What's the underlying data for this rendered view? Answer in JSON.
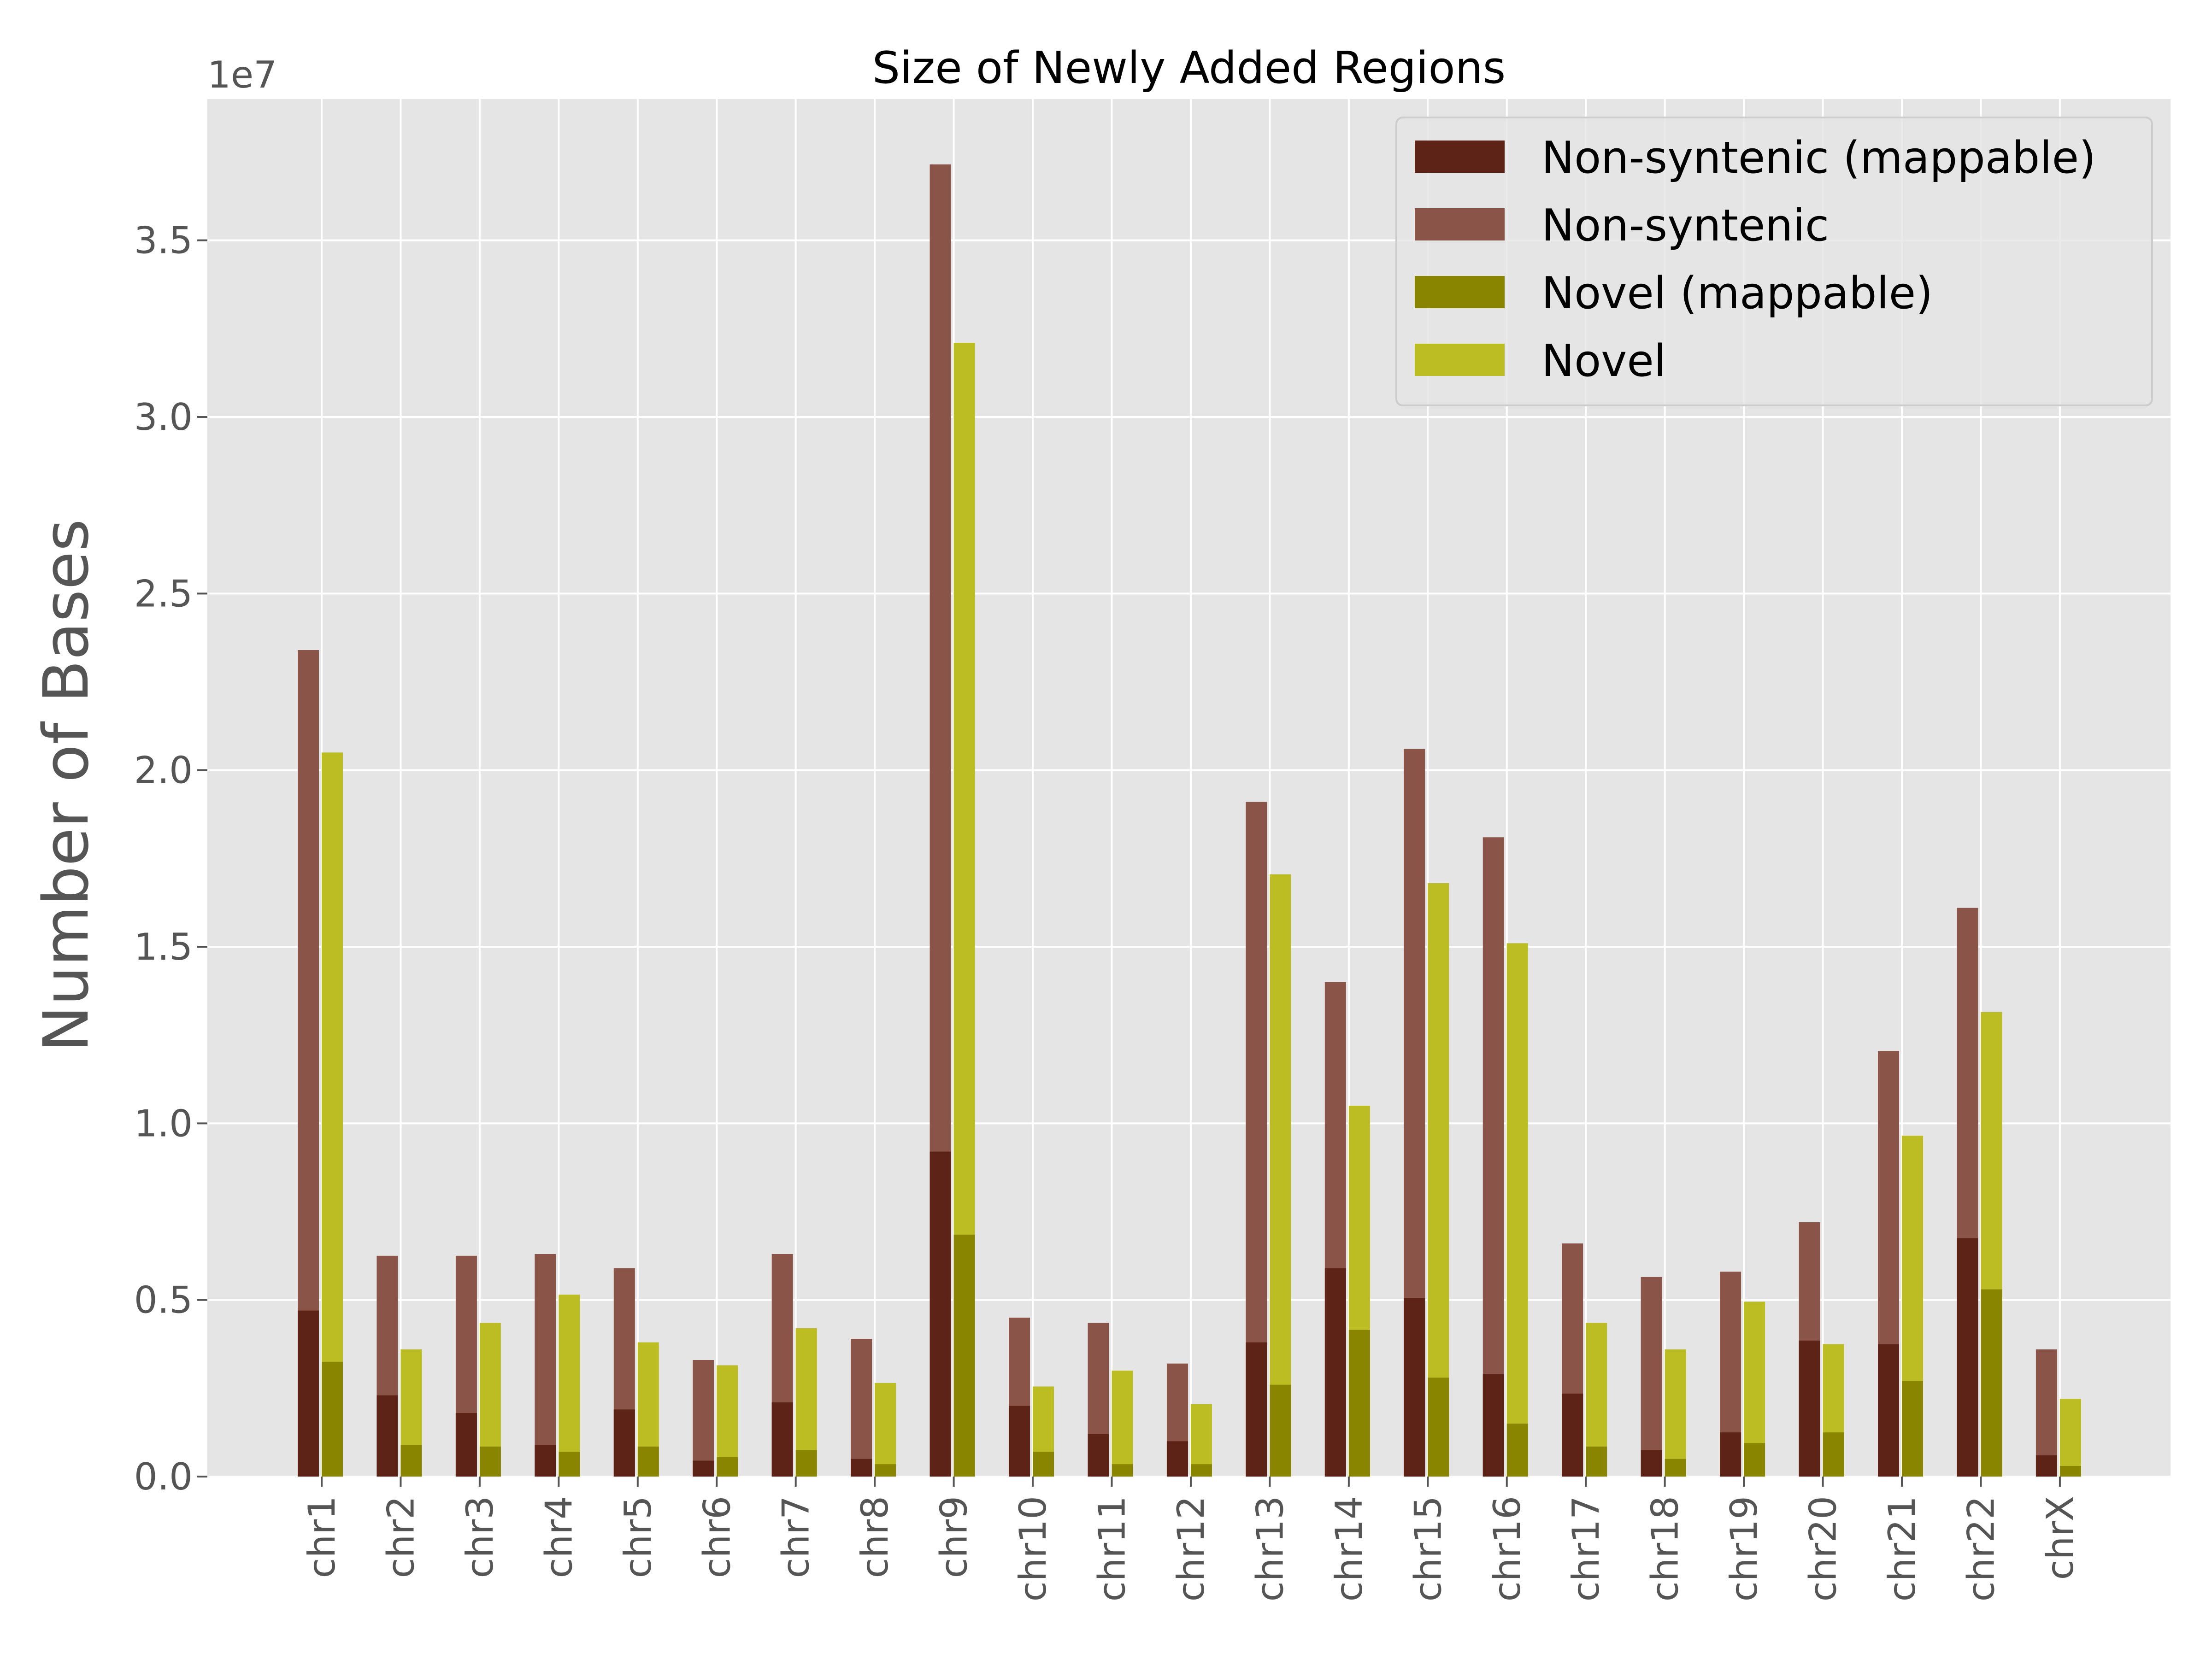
{
  "chart_data": {
    "type": "bar",
    "title": "Size of Newly Added Regions",
    "xlabel": "",
    "ylabel": "Number of Bases",
    "y_offset_label": "1e7",
    "ylim": [
      0,
      3.9
    ],
    "yticks": [
      "0.0",
      "0.5",
      "1.0",
      "1.5",
      "2.0",
      "2.5",
      "3.0",
      "3.5"
    ],
    "grid": true,
    "legend_position": "top-right",
    "categories": [
      "chr1",
      "chr2",
      "chr3",
      "chr4",
      "chr5",
      "chr6",
      "chr7",
      "chr8",
      "chr9",
      "chr10",
      "chr11",
      "chr12",
      "chr13",
      "chr14",
      "chr15",
      "chr16",
      "chr17",
      "chr18",
      "chr19",
      "chr20",
      "chr21",
      "chr22",
      "chrX"
    ],
    "series": [
      {
        "name": "Non-syntenic (mappable)",
        "color": "#5c2316",
        "group": "Non-syntenic",
        "values": [
          0.47,
          0.23,
          0.18,
          0.09,
          0.19,
          0.045,
          0.21,
          0.05,
          0.92,
          0.2,
          0.12,
          0.1,
          0.38,
          0.59,
          0.505,
          0.29,
          0.235,
          0.075,
          0.125,
          0.385,
          0.375,
          0.675,
          0.06
        ]
      },
      {
        "name": "Non-syntenic",
        "color": "#8a5449",
        "group": "Non-syntenic",
        "values": [
          2.34,
          0.625,
          0.625,
          0.63,
          0.59,
          0.33,
          0.63,
          0.39,
          3.715,
          0.45,
          0.435,
          0.32,
          1.91,
          1.4,
          2.06,
          1.81,
          0.66,
          0.565,
          0.58,
          0.72,
          1.205,
          1.61,
          0.36
        ]
      },
      {
        "name": "Novel (mappable)",
        "color": "#8a8500",
        "group": "Novel",
        "values": [
          0.325,
          0.09,
          0.085,
          0.07,
          0.085,
          0.055,
          0.075,
          0.035,
          0.685,
          0.07,
          0.035,
          0.035,
          0.26,
          0.415,
          0.28,
          0.15,
          0.085,
          0.05,
          0.095,
          0.125,
          0.27,
          0.53,
          0.03
        ]
      },
      {
        "name": "Novel",
        "color": "#bcbc23",
        "group": "Novel",
        "values": [
          2.05,
          0.36,
          0.435,
          0.515,
          0.38,
          0.315,
          0.42,
          0.265,
          3.21,
          0.255,
          0.3,
          0.205,
          1.705,
          1.05,
          1.68,
          1.51,
          0.435,
          0.36,
          0.495,
          0.375,
          0.965,
          1.315,
          0.22
        ]
      }
    ]
  }
}
